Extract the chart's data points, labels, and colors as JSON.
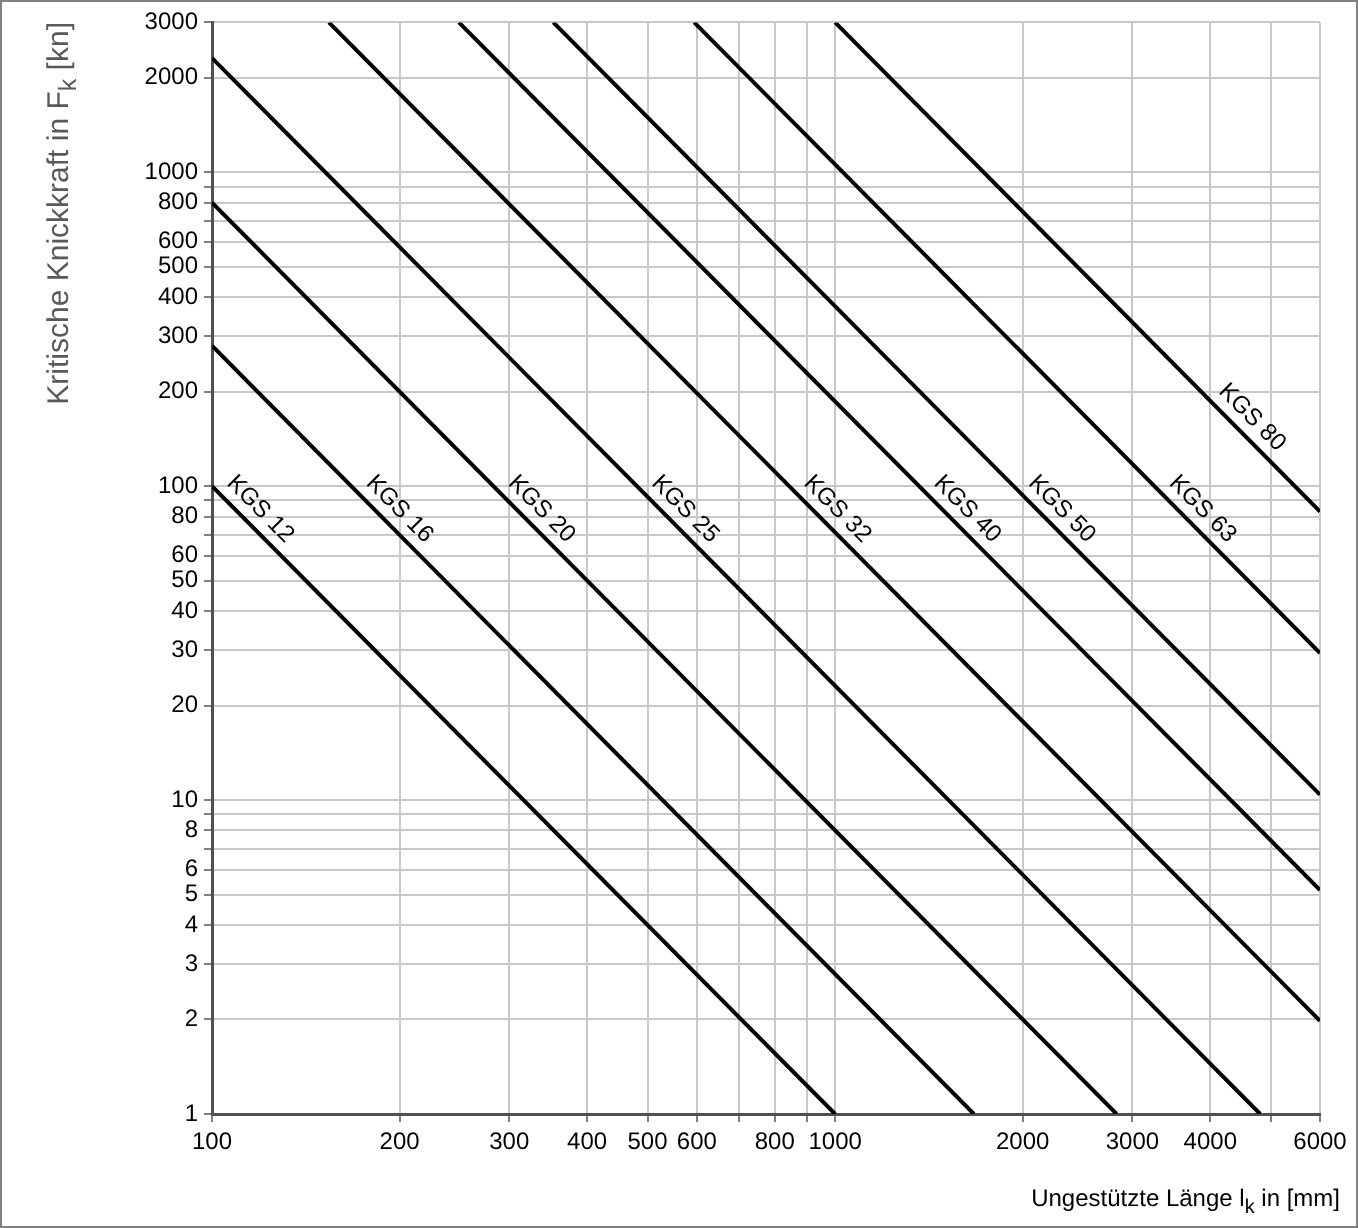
{
  "chart_data": {
    "type": "line",
    "xlabel": "Ungestützte Länge l$_{k}$ in [mm]",
    "ylabel": "Kritische Knickkraft in F$_{k}$ [kn]",
    "log": "xy",
    "grid": true,
    "marker": "none",
    "line_style": "solid",
    "xlim": [
      100,
      6000
    ],
    "ylim": [
      1,
      3000
    ],
    "xticks": [
      100,
      200,
      300,
      400,
      500,
      600,
      {
        "value": 700,
        "label": null
      },
      800,
      {
        "value": 900,
        "label": null
      },
      1000,
      2000,
      3000,
      4000,
      {
        "value": 5000,
        "label": null
      },
      6000
    ],
    "yticks": [
      1,
      2,
      3,
      4,
      5,
      6,
      {
        "value": 7,
        "label": null
      },
      8,
      {
        "value": 9,
        "label": null
      },
      10,
      20,
      30,
      40,
      50,
      60,
      {
        "value": 70,
        "label": null
      },
      80,
      {
        "value": 90,
        "label": null
      },
      100,
      200,
      300,
      400,
      500,
      600,
      {
        "value": 700,
        "label": null
      },
      800,
      {
        "value": 900,
        "label": null
      },
      1000,
      2000,
      3000
    ],
    "series": [
      {
        "name": "KGS 12",
        "color": "#000000",
        "x": [
          100,
          1000
        ],
        "values": [
          100,
          1
        ]
      },
      {
        "name": "KGS 16",
        "color": "#000000",
        "x": [
          100,
          1670
        ],
        "values": [
          280,
          1
        ]
      },
      {
        "name": "KGS 20",
        "color": "#000000",
        "x": [
          100,
          2830
        ],
        "values": [
          800,
          1
        ]
      },
      {
        "name": "KGS 25",
        "color": "#000000",
        "x": [
          100,
          4810
        ],
        "values": [
          2310,
          1
        ]
      },
      {
        "name": "KGS 32",
        "color": "#000000",
        "x": [
          154,
          6000
        ],
        "values": [
          3000,
          1.98
        ]
      },
      {
        "name": "KGS 40",
        "color": "#000000",
        "x": [
          249,
          6000
        ],
        "values": [
          3000,
          5.17
        ]
      },
      {
        "name": "KGS 50",
        "color": "#000000",
        "x": [
          353,
          6000
        ],
        "values": [
          3000,
          10.4
        ]
      },
      {
        "name": "KGS 63",
        "color": "#000000",
        "x": [
          594,
          6000
        ],
        "values": [
          3000,
          29.4
        ]
      },
      {
        "name": "KGS 80",
        "color": "#000000",
        "x": [
          1000,
          6000
        ],
        "values": [
          3000,
          83
        ]
      }
    ]
  }
}
